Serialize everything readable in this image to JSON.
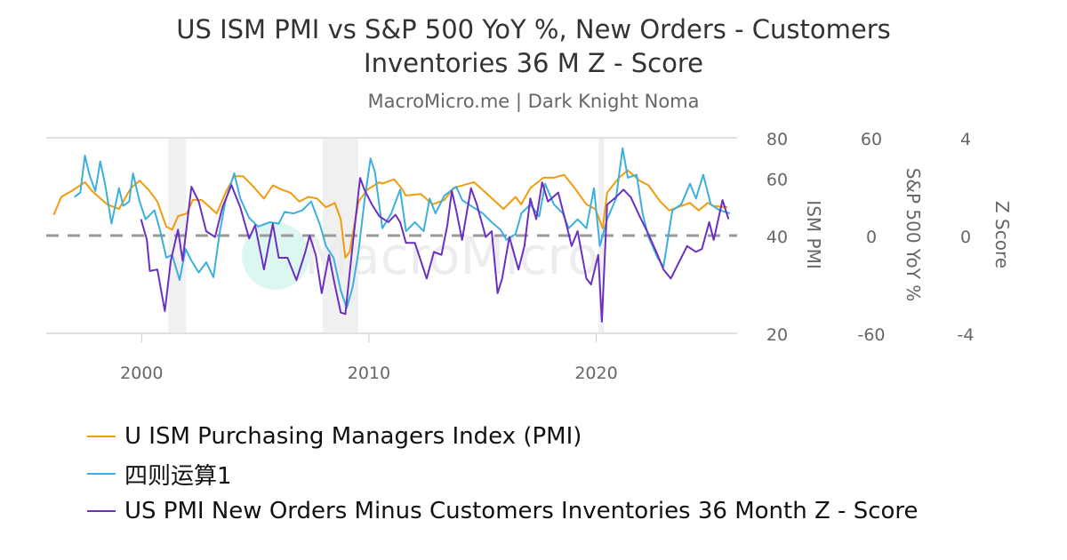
{
  "title_line1": "US ISM PMI vs S&P 500 YoY %, New Orders - Customers",
  "title_line2": "Inventories 36 M Z - Score",
  "subtitle": "MacroMicro.me | Dark Knight Noma",
  "watermark": "MacroMicro",
  "colors": {
    "pmi": "#f29b0c",
    "spx": "#3cb0dc",
    "z": "#6b2fc2",
    "recession": "#f0f0f0",
    "zero_line": "#999999"
  },
  "chart_data": {
    "type": "line",
    "x_axis": {
      "range": [
        1995.8,
        2026.2
      ],
      "ticks": [
        "2000",
        "2010",
        "2020"
      ]
    },
    "y_axes": [
      {
        "title": "ISM PMI",
        "scale": "log",
        "range": [
          20,
          80
        ],
        "ticks": [
          "80",
          "60",
          "40",
          "20"
        ]
      },
      {
        "title": "S&P 500 YoY %",
        "scale": "linear",
        "range": [
          -60,
          60
        ],
        "ticks": [
          "60",
          "0",
          "-60"
        ]
      },
      {
        "title": "Z Score",
        "scale": "linear",
        "range": [
          -4,
          4
        ],
        "ticks": [
          "4",
          "0",
          "-4"
        ]
      }
    ],
    "zero_line": {
      "axis": "Z Score",
      "value": 0,
      "style": "dashed"
    },
    "recessions": [
      [
        2001.17,
        2001.95
      ],
      [
        2007.97,
        2009.53
      ],
      [
        2020.1,
        2020.35
      ]
    ],
    "grid": "horizontal",
    "legend_position": "bottom-left",
    "series": [
      {
        "name": "U ISM Purchasing Managers Index (PMI)",
        "axis": 0,
        "color": "#f29b0c",
        "points": [
          [
            1996.13,
            46.3
          ],
          [
            1996.46,
            52.6
          ],
          [
            1996.91,
            54.8
          ],
          [
            1997.5,
            58.4
          ],
          [
            1997.82,
            54.8
          ],
          [
            1998.48,
            49.9
          ],
          [
            1999.0,
            48.3
          ],
          [
            1999.52,
            56.0
          ],
          [
            1999.91,
            59.0
          ],
          [
            2000.3,
            55.4
          ],
          [
            2000.69,
            50.9
          ],
          [
            2001.08,
            42.6
          ],
          [
            2001.34,
            41.7
          ],
          [
            2001.6,
            45.9
          ],
          [
            2001.99,
            46.8
          ],
          [
            2002.25,
            51.5
          ],
          [
            2002.64,
            51.5
          ],
          [
            2003.3,
            46.8
          ],
          [
            2003.69,
            54.2
          ],
          [
            2004.07,
            60.9
          ],
          [
            2004.46,
            60.9
          ],
          [
            2004.86,
            57.1
          ],
          [
            2005.38,
            52.0
          ],
          [
            2005.77,
            57.1
          ],
          [
            2006.16,
            55.4
          ],
          [
            2006.55,
            54.2
          ],
          [
            2006.94,
            50.9
          ],
          [
            2007.33,
            52.6
          ],
          [
            2007.72,
            52.0
          ],
          [
            2008.11,
            48.9
          ],
          [
            2008.5,
            50.4
          ],
          [
            2008.76,
            44.9
          ],
          [
            2008.96,
            34.2
          ],
          [
            2009.15,
            35.6
          ],
          [
            2009.54,
            50.9
          ],
          [
            2009.93,
            55.4
          ],
          [
            2010.46,
            58.4
          ],
          [
            2010.59,
            57.8
          ],
          [
            2011.1,
            59.6
          ],
          [
            2011.43,
            56.0
          ],
          [
            2011.62,
            53.1
          ],
          [
            2012.28,
            53.7
          ],
          [
            2012.8,
            49.9
          ],
          [
            2013.32,
            51.5
          ],
          [
            2013.71,
            56.0
          ],
          [
            2014.62,
            58.4
          ],
          [
            2015.14,
            54.2
          ],
          [
            2015.92,
            48.3
          ],
          [
            2016.45,
            52.6
          ],
          [
            2016.7,
            49.9
          ],
          [
            2017.1,
            56.0
          ],
          [
            2017.68,
            60.3
          ],
          [
            2018.14,
            60.3
          ],
          [
            2018.59,
            61.5
          ],
          [
            2019.05,
            56.0
          ],
          [
            2019.57,
            49.9
          ],
          [
            2019.96,
            48.3
          ],
          [
            2020.29,
            42.1
          ],
          [
            2020.48,
            54.2
          ],
          [
            2021.0,
            60.3
          ],
          [
            2021.39,
            63.5
          ],
          [
            2021.91,
            59.0
          ],
          [
            2022.3,
            57.1
          ],
          [
            2022.82,
            50.9
          ],
          [
            2023.21,
            47.8
          ],
          [
            2023.6,
            48.9
          ],
          [
            2024.12,
            50.4
          ],
          [
            2024.51,
            47.8
          ],
          [
            2024.91,
            50.4
          ],
          [
            2025.17,
            49.3
          ],
          [
            2025.76,
            48.9
          ]
        ]
      },
      {
        "name": "四则运算1",
        "axis": 1,
        "color": "#3cb0dc",
        "points": [
          [
            1997.04,
            23.6
          ],
          [
            1997.3,
            26.4
          ],
          [
            1997.5,
            49.1
          ],
          [
            1997.7,
            37.3
          ],
          [
            1997.96,
            27.3
          ],
          [
            1998.18,
            45.5
          ],
          [
            1998.41,
            30
          ],
          [
            1998.67,
            7.3
          ],
          [
            1999.0,
            29.1
          ],
          [
            1999.19,
            18.2
          ],
          [
            1999.45,
            20.9
          ],
          [
            1999.62,
            38.2
          ],
          [
            1999.91,
            20.9
          ],
          [
            2000.17,
            10
          ],
          [
            2000.56,
            15.5
          ],
          [
            2000.82,
            2.7
          ],
          [
            2001.08,
            -13.6
          ],
          [
            2001.34,
            -11.8
          ],
          [
            2001.67,
            -27.3
          ],
          [
            2001.93,
            -8.2
          ],
          [
            2002.19,
            -15.4
          ],
          [
            2002.51,
            -22.7
          ],
          [
            2002.84,
            -16.4
          ],
          [
            2003.16,
            -25.5
          ],
          [
            2003.42,
            0.9
          ],
          [
            2003.68,
            20.9
          ],
          [
            2004.07,
            38.2
          ],
          [
            2004.34,
            22.7
          ],
          [
            2004.73,
            10.9
          ],
          [
            2005.12,
            5.5
          ],
          [
            2005.64,
            8.2
          ],
          [
            2006.03,
            7.3
          ],
          [
            2006.29,
            14.5
          ],
          [
            2006.68,
            13.6
          ],
          [
            2007.07,
            15.5
          ],
          [
            2007.46,
            20.9
          ],
          [
            2007.85,
            6.4
          ],
          [
            2008.11,
            -6.4
          ],
          [
            2008.44,
            -13.6
          ],
          [
            2008.76,
            -33.6
          ],
          [
            2009.02,
            -44.5
          ],
          [
            2009.28,
            -31.8
          ],
          [
            2009.54,
            -10
          ],
          [
            2009.8,
            20.9
          ],
          [
            2010.07,
            47.3
          ],
          [
            2010.26,
            39.1
          ],
          [
            2010.59,
            4.5
          ],
          [
            2010.98,
            13.6
          ],
          [
            2011.37,
            28.2
          ],
          [
            2011.63,
            2.7
          ],
          [
            2012.02,
            8.2
          ],
          [
            2012.41,
            2.7
          ],
          [
            2012.67,
            22.7
          ],
          [
            2012.93,
            13.6
          ],
          [
            2013.32,
            24.5
          ],
          [
            2013.84,
            30
          ],
          [
            2014.1,
            21.8
          ],
          [
            2014.49,
            18.2
          ],
          [
            2015.01,
            13.6
          ],
          [
            2015.4,
            8.2
          ],
          [
            2015.79,
            3.6
          ],
          [
            2016.05,
            -2.7
          ],
          [
            2016.45,
            0.9
          ],
          [
            2016.71,
            13.6
          ],
          [
            2017.1,
            19.1
          ],
          [
            2017.49,
            11.8
          ],
          [
            2017.75,
            31.8
          ],
          [
            2018.14,
            19.1
          ],
          [
            2018.53,
            13.6
          ],
          [
            2018.79,
            4.5
          ],
          [
            2019.18,
            10
          ],
          [
            2019.57,
            4.5
          ],
          [
            2019.9,
            29.1
          ],
          [
            2020.16,
            -6.4
          ],
          [
            2020.48,
            10
          ],
          [
            2020.87,
            22.7
          ],
          [
            2021.16,
            53.6
          ],
          [
            2021.39,
            35.5
          ],
          [
            2021.78,
            37.3
          ],
          [
            2022.04,
            13.6
          ],
          [
            2022.3,
            -0.9
          ],
          [
            2022.7,
            -13.6
          ],
          [
            2022.96,
            -19.1
          ],
          [
            2023.35,
            15.5
          ],
          [
            2023.74,
            19.1
          ],
          [
            2024.13,
            31.8
          ],
          [
            2024.39,
            22.7
          ],
          [
            2024.71,
            37.3
          ],
          [
            2025.04,
            19.1
          ],
          [
            2025.43,
            15.5
          ],
          [
            2025.89,
            13.6
          ]
        ]
      },
      {
        "name": "US PMI New Orders Minus Customers Inventories 36 Month Z - Score",
        "axis": 2,
        "color": "#6b2fc2",
        "points": [
          [
            1999.97,
            0.67
          ],
          [
            2000.23,
            -0.18
          ],
          [
            2000.36,
            -1.45
          ],
          [
            2000.69,
            -1.39
          ],
          [
            2001.02,
            -3.09
          ],
          [
            2001.28,
            -1.03
          ],
          [
            2001.6,
            0.24
          ],
          [
            2001.8,
            -1.03
          ],
          [
            2002.19,
            2.0
          ],
          [
            2002.51,
            1.39
          ],
          [
            2002.84,
            0.18
          ],
          [
            2003.23,
            -0.06
          ],
          [
            2003.55,
            1.15
          ],
          [
            2003.95,
            2.06
          ],
          [
            2004.34,
            1.15
          ],
          [
            2004.73,
            -0.12
          ],
          [
            2004.99,
            0.42
          ],
          [
            2005.38,
            -1.39
          ],
          [
            2005.77,
            0.48
          ],
          [
            2006.03,
            -0.91
          ],
          [
            2006.42,
            -0.91
          ],
          [
            2006.81,
            -1.82
          ],
          [
            2007.2,
            -0.67
          ],
          [
            2007.39,
            0
          ],
          [
            2007.66,
            -0.79
          ],
          [
            2007.92,
            -2.36
          ],
          [
            2008.24,
            -0.79
          ],
          [
            2008.44,
            -1.76
          ],
          [
            2008.76,
            -3.15
          ],
          [
            2008.96,
            -3.21
          ],
          [
            2009.28,
            -0.43
          ],
          [
            2009.61,
            2.36
          ],
          [
            2009.8,
            1.88
          ],
          [
            2010.13,
            1.27
          ],
          [
            2010.46,
            0.79
          ],
          [
            2010.85,
            0.55
          ],
          [
            2011.17,
            0.85
          ],
          [
            2011.37,
            0.55
          ],
          [
            2011.63,
            -0.3
          ],
          [
            2012.02,
            -0.3
          ],
          [
            2012.54,
            -1.76
          ],
          [
            2012.86,
            -0.67
          ],
          [
            2013.19,
            -0.79
          ],
          [
            2013.45,
            0.42
          ],
          [
            2013.65,
            1.82
          ],
          [
            2013.84,
            1.03
          ],
          [
            2014.1,
            -0.18
          ],
          [
            2014.49,
            1.94
          ],
          [
            2014.75,
            1.27
          ],
          [
            2015.14,
            -0.06
          ],
          [
            2015.4,
            0.18
          ],
          [
            2015.66,
            -2.36
          ],
          [
            2015.86,
            -1.76
          ],
          [
            2016.18,
            -0.06
          ],
          [
            2016.58,
            -1.39
          ],
          [
            2016.84,
            -0.43
          ],
          [
            2017.1,
            1.52
          ],
          [
            2017.36,
            0.67
          ],
          [
            2017.62,
            2.18
          ],
          [
            2017.88,
            1.39
          ],
          [
            2018.33,
            1.76
          ],
          [
            2018.66,
            0.55
          ],
          [
            2018.92,
            -0.43
          ],
          [
            2019.18,
            0.18
          ],
          [
            2019.57,
            -1.76
          ],
          [
            2019.77,
            -2.0
          ],
          [
            2020.09,
            -0.79
          ],
          [
            2020.25,
            -3.52
          ],
          [
            2020.48,
            1.27
          ],
          [
            2020.87,
            1.57
          ],
          [
            2021.2,
            1.88
          ],
          [
            2021.52,
            1.57
          ],
          [
            2021.91,
            0.79
          ],
          [
            2022.3,
            0.06
          ],
          [
            2022.7,
            -0.79
          ],
          [
            2022.96,
            -1.39
          ],
          [
            2023.28,
            -1.76
          ],
          [
            2023.61,
            -1.15
          ],
          [
            2024.0,
            -0.43
          ],
          [
            2024.39,
            -0.67
          ],
          [
            2024.65,
            -0.55
          ],
          [
            2024.97,
            0.55
          ],
          [
            2025.17,
            -0.18
          ],
          [
            2025.56,
            1.45
          ],
          [
            2025.82,
            0.67
          ]
        ]
      }
    ]
  }
}
